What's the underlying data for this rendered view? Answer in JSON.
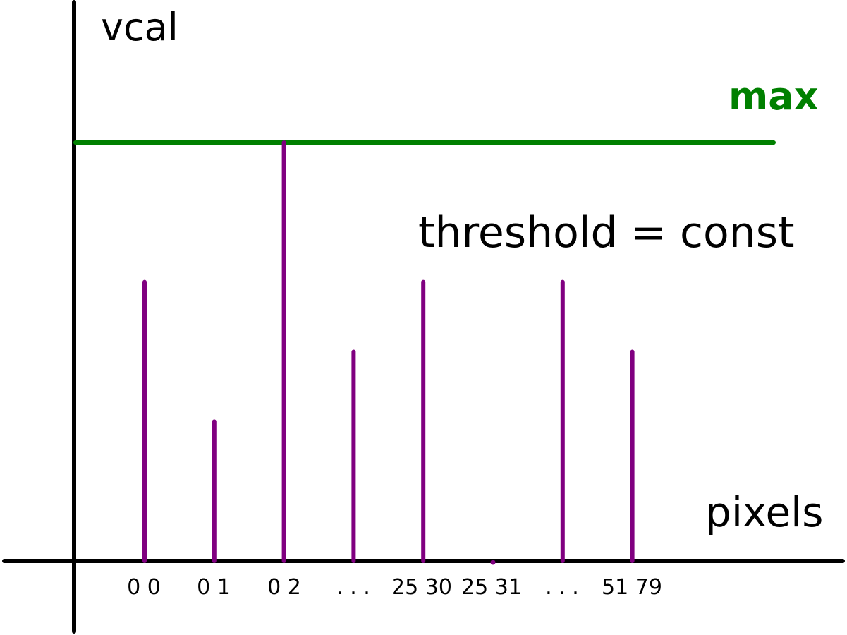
{
  "chart_data": {
    "type": "bar",
    "ylabel": "vcal",
    "xlabel": "pixels",
    "max_line": {
      "label": "max",
      "value": 6
    },
    "annotation": "threshold = const",
    "ylim": [
      0,
      6
    ],
    "bar_color": "#800080",
    "max_color": "#008000",
    "axis_color": "#000000",
    "categories": [
      "0 0",
      "0 1",
      "0 2",
      ". . .",
      "25 30",
      "25 31",
      ". . .",
      "51 79"
    ],
    "values": [
      4,
      2,
      6,
      3,
      4,
      0,
      4,
      3
    ]
  }
}
